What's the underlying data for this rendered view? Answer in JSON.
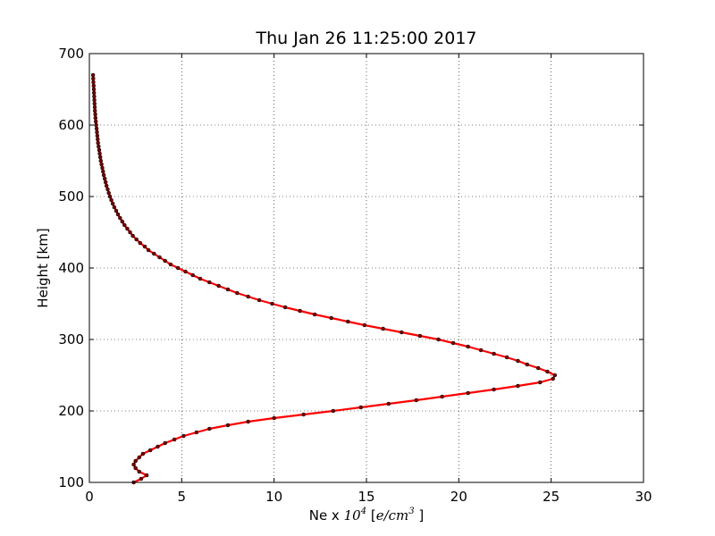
{
  "chart_data": {
    "type": "line",
    "title": "Thu Jan 26 11:25:00 2017",
    "xlabel": "Ne x 10^4 [e/cm^3]",
    "ylabel": "Height [km]",
    "xlim": [
      0,
      30
    ],
    "ylim": [
      100,
      700
    ],
    "xticks": [
      "0",
      "5",
      "10",
      "15",
      "20",
      "25",
      "30"
    ],
    "yticks": [
      "100",
      "200",
      "300",
      "400",
      "500",
      "600",
      "700"
    ],
    "grid": true,
    "line_color": "#ff0000",
    "marker_color": "#7a0000",
    "points": [
      [
        2.4,
        100
      ],
      [
        2.8,
        105
      ],
      [
        3.1,
        110
      ],
      [
        2.7,
        115
      ],
      [
        2.5,
        120
      ],
      [
        2.4,
        125
      ],
      [
        2.5,
        130
      ],
      [
        2.7,
        135
      ],
      [
        2.9,
        140
      ],
      [
        3.3,
        145
      ],
      [
        3.7,
        150
      ],
      [
        4.1,
        155
      ],
      [
        4.6,
        160
      ],
      [
        5.1,
        165
      ],
      [
        5.8,
        170
      ],
      [
        6.5,
        175
      ],
      [
        7.5,
        180
      ],
      [
        8.6,
        185
      ],
      [
        10.0,
        190
      ],
      [
        11.6,
        195
      ],
      [
        13.2,
        200
      ],
      [
        14.7,
        205
      ],
      [
        16.2,
        210
      ],
      [
        17.7,
        215
      ],
      [
        19.1,
        220
      ],
      [
        20.5,
        225
      ],
      [
        21.9,
        230
      ],
      [
        23.2,
        235
      ],
      [
        24.4,
        240
      ],
      [
        25.1,
        245
      ],
      [
        25.2,
        250
      ],
      [
        24.8,
        255
      ],
      [
        24.3,
        260
      ],
      [
        23.7,
        265
      ],
      [
        23.2,
        270
      ],
      [
        22.6,
        275
      ],
      [
        21.9,
        280
      ],
      [
        21.2,
        285
      ],
      [
        20.5,
        290
      ],
      [
        19.7,
        295
      ],
      [
        18.9,
        300
      ],
      [
        17.9,
        305
      ],
      [
        16.9,
        310
      ],
      [
        15.9,
        315
      ],
      [
        14.9,
        320
      ],
      [
        14.0,
        325
      ],
      [
        13.1,
        330
      ],
      [
        12.2,
        335
      ],
      [
        11.4,
        340
      ],
      [
        10.6,
        345
      ],
      [
        9.9,
        350
      ],
      [
        9.2,
        355
      ],
      [
        8.6,
        360
      ],
      [
        8.0,
        365
      ],
      [
        7.5,
        370
      ],
      [
        7.0,
        375
      ],
      [
        6.5,
        380
      ],
      [
        6.0,
        385
      ],
      [
        5.6,
        390
      ],
      [
        5.2,
        395
      ],
      [
        4.8,
        400
      ],
      [
        4.4,
        405
      ],
      [
        4.1,
        410
      ],
      [
        3.8,
        415
      ],
      [
        3.5,
        420
      ],
      [
        3.2,
        425
      ],
      [
        3.0,
        430
      ],
      [
        2.75,
        435
      ],
      [
        2.55,
        440
      ],
      [
        2.35,
        445
      ],
      [
        2.2,
        450
      ],
      [
        2.05,
        455
      ],
      [
        1.9,
        460
      ],
      [
        1.78,
        465
      ],
      [
        1.66,
        470
      ],
      [
        1.55,
        475
      ],
      [
        1.45,
        480
      ],
      [
        1.35,
        485
      ],
      [
        1.27,
        490
      ],
      [
        1.19,
        495
      ],
      [
        1.12,
        500
      ],
      [
        1.05,
        505
      ],
      [
        0.99,
        510
      ],
      [
        0.93,
        515
      ],
      [
        0.88,
        520
      ],
      [
        0.83,
        525
      ],
      [
        0.78,
        530
      ],
      [
        0.74,
        535
      ],
      [
        0.7,
        540
      ],
      [
        0.66,
        545
      ],
      [
        0.62,
        550
      ],
      [
        0.59,
        555
      ],
      [
        0.56,
        560
      ],
      [
        0.53,
        565
      ],
      [
        0.5,
        570
      ],
      [
        0.47,
        575
      ],
      [
        0.45,
        580
      ],
      [
        0.43,
        585
      ],
      [
        0.41,
        590
      ],
      [
        0.39,
        595
      ],
      [
        0.37,
        600
      ],
      [
        0.35,
        605
      ],
      [
        0.33,
        610
      ],
      [
        0.32,
        615
      ],
      [
        0.3,
        620
      ],
      [
        0.29,
        625
      ],
      [
        0.28,
        630
      ],
      [
        0.27,
        635
      ],
      [
        0.26,
        640
      ],
      [
        0.25,
        645
      ],
      [
        0.24,
        650
      ],
      [
        0.23,
        655
      ],
      [
        0.22,
        660
      ],
      [
        0.21,
        665
      ],
      [
        0.2,
        670
      ]
    ]
  }
}
